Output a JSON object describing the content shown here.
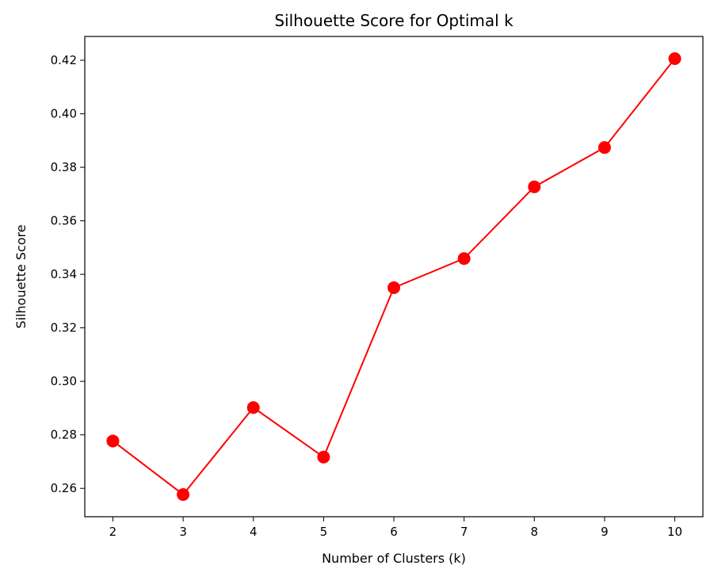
{
  "chart_data": {
    "type": "line",
    "title": "Silhouette Score for Optimal k",
    "xlabel": "Number of Clusters (k)",
    "ylabel": "Silhouette Score",
    "x": [
      2,
      3,
      4,
      5,
      6,
      7,
      8,
      9,
      10
    ],
    "series": [
      {
        "values": [
          0.2777,
          0.2577,
          0.2902,
          0.2717,
          0.335,
          0.3459,
          0.3727,
          0.3874,
          0.4206
        ],
        "color": "#ff0000",
        "marker": "circle"
      }
    ],
    "xlim": [
      1.6,
      10.4
    ],
    "ylim": [
      0.2494,
      0.4289
    ],
    "xticks": [
      2,
      3,
      4,
      5,
      6,
      7,
      8,
      9,
      10
    ],
    "xtick_labels": [
      "2",
      "3",
      "4",
      "5",
      "6",
      "7",
      "8",
      "9",
      "10"
    ],
    "yticks": [
      0.26,
      0.28,
      0.3,
      0.32,
      0.34,
      0.36,
      0.38,
      0.4,
      0.42
    ],
    "ytick_labels": [
      "0.26",
      "0.28",
      "0.30",
      "0.32",
      "0.34",
      "0.36",
      "0.38",
      "0.40",
      "0.42"
    ],
    "grid": false,
    "legend": "none"
  }
}
